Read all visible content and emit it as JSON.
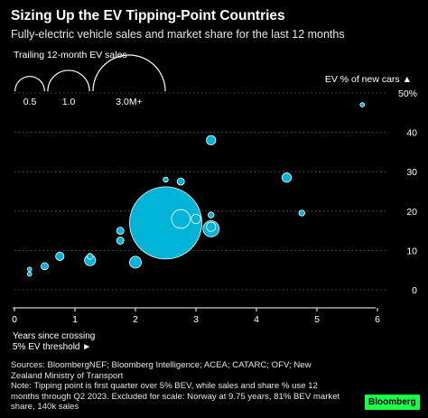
{
  "header": {
    "title": "Sizing Up the EV Tipping-Point Countries",
    "subtitle": "Fully-electric vehicle sales and market share for the last 12 months"
  },
  "size_legend": {
    "title": "Trailing 12-month EV sales",
    "items": [
      {
        "label": "0.5",
        "sales_m": 0.5
      },
      {
        "label": "1.0",
        "sales_m": 1.0
      },
      {
        "label": "3.0M+",
        "sales_m": 3.0
      }
    ]
  },
  "footer": {
    "x_axis_title_line1": "Years since crossing",
    "x_axis_title_line2": "5% EV threshold ►",
    "sources_line1": "Sources: BloombergNEF; Bloomberg Intelligence; ACEA; CATARC; OFV; New",
    "sources_line2": "Zealand Ministry of Transport",
    "note_line1": "Note: Tipping point is first quarter over 5% BEV, while sales and share % use 12",
    "note_line2": "months through Q2 2023. Excluded for scale: Norway at 9.75 years, 81% BEV market",
    "note_line3": "share, 140k sales",
    "brand": "Bloomberg"
  },
  "colors": {
    "background": "#000000",
    "bubble_fill": "#00b4d8",
    "bubble_stroke": "#ffffff",
    "grid": "#555555",
    "logo": "#1aff4a"
  },
  "chart_data": {
    "type": "scatter",
    "xlabel": "Years since crossing 5% EV threshold ►",
    "ylabel": "EV % of new cars ▲",
    "xlim": [
      0,
      6.1
    ],
    "ylim": [
      0,
      50
    ],
    "xticks": [
      "0",
      "1",
      "2",
      "3",
      "4",
      "5",
      "6"
    ],
    "yticks": [
      "0",
      "10",
      "20",
      "30",
      "40",
      "50%"
    ],
    "grid": "horizontal dotted",
    "size_encoding": "trailing 12-month EV sales (millions)",
    "points": [
      {
        "x": 0.25,
        "y": 4.0,
        "sales_m": 0.006
      },
      {
        "x": 0.25,
        "y": 5.2,
        "sales_m": 0.003
      },
      {
        "x": 0.5,
        "y": 6.0,
        "sales_m": 0.03
      },
      {
        "x": 0.75,
        "y": 8.5,
        "sales_m": 0.04
      },
      {
        "x": 1.25,
        "y": 7.5,
        "sales_m": 0.07
      },
      {
        "x": 1.25,
        "y": 8.5,
        "sales_m": 0.02
      },
      {
        "x": 1.75,
        "y": 12.5,
        "sales_m": 0.03
      },
      {
        "x": 1.75,
        "y": 15.0,
        "sales_m": 0.03
      },
      {
        "x": 2.0,
        "y": 7.0,
        "sales_m": 0.08
      },
      {
        "x": 2.5,
        "y": 28.0,
        "sales_m": 0.015
      },
      {
        "x": 2.5,
        "y": 17.0,
        "sales_m": 3.0
      },
      {
        "x": 2.75,
        "y": 27.5,
        "sales_m": 0.03
      },
      {
        "x": 2.75,
        "y": 18.0,
        "sales_m": 0.2
      },
      {
        "x": 3.0,
        "y": 18.0,
        "sales_m": 0.05
      },
      {
        "x": 3.25,
        "y": 15.5,
        "sales_m": 0.15
      },
      {
        "x": 3.25,
        "y": 19.0,
        "sales_m": 0.02
      },
      {
        "x": 3.25,
        "y": 16.0,
        "sales_m": 0.05
      },
      {
        "x": 3.25,
        "y": 38.0,
        "sales_m": 0.05
      },
      {
        "x": 4.5,
        "y": 28.5,
        "sales_m": 0.05
      },
      {
        "x": 4.75,
        "y": 19.5,
        "sales_m": 0.02
      },
      {
        "x": 5.75,
        "y": 47.0,
        "sales_m": 0.005
      }
    ]
  }
}
